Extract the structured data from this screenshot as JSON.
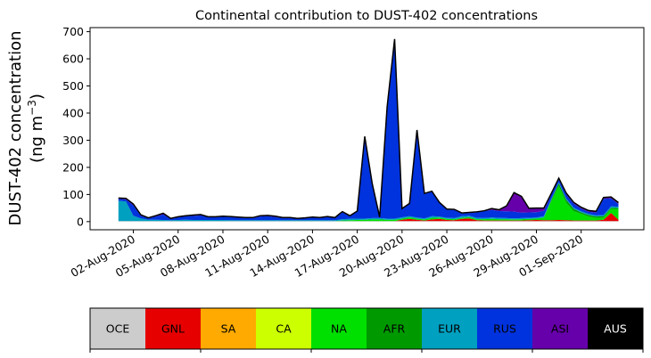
{
  "chart_data": {
    "type": "area",
    "stacked": true,
    "title": "Continental contribution to DUST-402 concentrations",
    "ylabel_line1": "DUST-402 concentration",
    "ylabel_line2": "(ng m",
    "ylabel_sup": "−3",
    "ylabel_close": ")",
    "xlabel": "",
    "ylim": [
      -30,
      715
    ],
    "yticks": [
      0,
      100,
      200,
      300,
      400,
      500,
      600,
      700
    ],
    "xlim": [
      -2.9,
      34.2
    ],
    "x_ticks": [
      {
        "pos": 0,
        "label": "02-Aug-2020"
      },
      {
        "pos": 3,
        "label": "05-Aug-2020"
      },
      {
        "pos": 6,
        "label": "08-Aug-2020"
      },
      {
        "pos": 9,
        "label": "11-Aug-2020"
      },
      {
        "pos": 12,
        "label": "14-Aug-2020"
      },
      {
        "pos": 15,
        "label": "17-Aug-2020"
      },
      {
        "pos": 18,
        "label": "20-Aug-2020"
      },
      {
        "pos": 21,
        "label": "23-Aug-2020"
      },
      {
        "pos": 24,
        "label": "26-Aug-2020"
      },
      {
        "pos": 27,
        "label": "29-Aug-2020"
      },
      {
        "pos": 30,
        "label": "01-Sep-2020"
      }
    ],
    "x": [
      -1,
      -0.5,
      0,
      0.5,
      1,
      1.5,
      2,
      2.5,
      3,
      3.5,
      4,
      4.5,
      5,
      5.5,
      6,
      6.5,
      7,
      7.5,
      8,
      8.5,
      9,
      9.5,
      10,
      10.5,
      11,
      11.5,
      12,
      12.5,
      13,
      13.5,
      14,
      14.5,
      15,
      15.5,
      16,
      16.5,
      17,
      17.5,
      18,
      18.5,
      19,
      19.5,
      20,
      20.5,
      21,
      21.5,
      22,
      22.5,
      23,
      23.5,
      24,
      24.5,
      25,
      25.5,
      26,
      26.5,
      27,
      27.5,
      28,
      28.5,
      29,
      29.5,
      30,
      30.5,
      31,
      31.5,
      32,
      32.5
    ],
    "series": [
      {
        "name": "OCE",
        "color": "#cccccc",
        "values": [
          2,
          2,
          2,
          2,
          2,
          2,
          2,
          2,
          2,
          2,
          2,
          2,
          2,
          2,
          2,
          2,
          2,
          2,
          2,
          2,
          2,
          2,
          2,
          2,
          2,
          2,
          2,
          2,
          2,
          2,
          2,
          2,
          2,
          2,
          2,
          2,
          2,
          2,
          2,
          2,
          2,
          2,
          2,
          2,
          2,
          2,
          2,
          2,
          2,
          2,
          2,
          2,
          2,
          2,
          2,
          2,
          2,
          2,
          2,
          2,
          2,
          2,
          2,
          2,
          2,
          2,
          2,
          2
        ]
      },
      {
        "name": "GNL",
        "color": "#e60000",
        "values": [
          0,
          0,
          0,
          0,
          0,
          0,
          0,
          0,
          0,
          0,
          0,
          0,
          0,
          0,
          0,
          0,
          0,
          0,
          0,
          0,
          0,
          0,
          0,
          0,
          0,
          0,
          0,
          0,
          0,
          0,
          0,
          0,
          0,
          0,
          0,
          0,
          0,
          0,
          5,
          8,
          5,
          2,
          6,
          8,
          4,
          3,
          8,
          10,
          3,
          2,
          2,
          2,
          2,
          2,
          2,
          3,
          4,
          3,
          3,
          4,
          3,
          2,
          2,
          2,
          2,
          5,
          30,
          5
        ]
      },
      {
        "name": "SA",
        "color": "#ffaa00",
        "values": [
          0,
          0,
          0,
          0,
          0,
          0,
          0,
          0,
          0,
          0,
          0,
          0,
          0,
          0,
          0,
          0,
          0,
          0,
          0,
          0,
          0,
          0,
          0,
          0,
          0,
          0,
          0,
          0,
          0,
          0,
          0,
          0,
          0,
          0,
          0,
          0,
          0,
          0,
          0,
          0,
          0,
          0,
          0,
          0,
          0,
          0,
          0,
          0,
          0,
          0,
          0,
          0,
          0,
          0,
          0,
          0,
          0,
          0,
          0,
          0,
          0,
          0,
          0,
          0,
          0,
          0,
          0,
          0
        ]
      },
      {
        "name": "CA",
        "color": "#ccff00",
        "values": [
          0,
          0,
          0,
          0,
          0,
          0,
          0,
          0,
          0,
          0,
          0,
          0,
          0,
          0,
          0,
          0,
          0,
          0,
          0,
          0,
          0,
          0,
          0,
          0,
          0,
          0,
          0,
          0,
          0,
          0,
          0,
          0,
          0,
          0,
          0,
          0,
          0,
          0,
          0,
          0,
          0,
          0,
          0,
          0,
          0,
          0,
          0,
          0,
          0,
          0,
          0,
          0,
          0,
          0,
          0,
          0,
          0,
          0,
          0,
          0,
          0,
          0,
          0,
          0,
          0,
          0,
          0,
          0
        ]
      },
      {
        "name": "NA",
        "color": "#00e000",
        "values": [
          0,
          0,
          0,
          0,
          0,
          0,
          0,
          0,
          0,
          0,
          0,
          0,
          0,
          0,
          0,
          0,
          0,
          0,
          0,
          0,
          0,
          0,
          0,
          0,
          0,
          0,
          0,
          0,
          0,
          0,
          2,
          3,
          4,
          5,
          6,
          6,
          5,
          5,
          4,
          6,
          4,
          4,
          6,
          5,
          4,
          4,
          4,
          5,
          4,
          5,
          6,
          5,
          5,
          4,
          5,
          5,
          5,
          10,
          70,
          125,
          65,
          35,
          25,
          15,
          10,
          8,
          15,
          40
        ]
      },
      {
        "name": "AFR",
        "color": "#009900",
        "values": [
          0,
          0,
          0,
          0,
          0,
          0,
          0,
          0,
          0,
          0,
          0,
          0,
          0,
          0,
          0,
          0,
          0,
          0,
          0,
          0,
          0,
          0,
          0,
          0,
          0,
          0,
          0,
          0,
          0,
          0,
          0,
          0,
          0,
          0,
          0,
          0,
          0,
          0,
          0,
          0,
          0,
          0,
          0,
          0,
          0,
          0,
          0,
          0,
          0,
          0,
          0,
          0,
          0,
          0,
          0,
          0,
          0,
          0,
          5,
          10,
          10,
          8,
          5,
          5,
          5,
          5,
          4,
          3
        ]
      },
      {
        "name": "EUR",
        "color": "#00a0c0",
        "values": [
          75,
          72,
          20,
          10,
          5,
          5,
          4,
          3,
          4,
          5,
          4,
          4,
          4,
          4,
          4,
          3,
          3,
          3,
          3,
          3,
          3,
          3,
          3,
          3,
          3,
          3,
          3,
          3,
          3,
          3,
          5,
          5,
          5,
          4,
          5,
          5,
          4,
          4,
          5,
          4,
          4,
          4,
          6,
          4,
          4,
          4,
          6,
          5,
          5,
          4,
          5,
          5,
          4,
          4,
          4,
          4,
          4,
          5,
          4,
          4,
          5,
          4,
          4,
          4,
          4,
          4,
          5,
          5
        ]
      },
      {
        "name": "RUS",
        "color": "#0033dd",
        "values": [
          7,
          8,
          38,
          10,
          5,
          12,
          20,
          5,
          10,
          13,
          15,
          17,
          10,
          10,
          12,
          12,
          10,
          8,
          8,
          14,
          15,
          12,
          8,
          8,
          5,
          7,
          10,
          8,
          12,
          8,
          25,
          10,
          25,
          300,
          125,
          2,
          410,
          660,
          30,
          45,
          320,
          90,
          90,
          50,
          30,
          30,
          10,
          10,
          20,
          25,
          28,
          25,
          25,
          25,
          20,
          20,
          20,
          20,
          15,
          10,
          15,
          15,
          10,
          8,
          10,
          60,
          30,
          10
        ]
      },
      {
        "name": "ASI",
        "color": "#6600aa",
        "values": [
          3,
          4,
          5,
          3,
          2,
          3,
          5,
          2,
          2,
          2,
          3,
          3,
          2,
          2,
          2,
          2,
          2,
          2,
          2,
          3,
          3,
          3,
          2,
          2,
          2,
          2,
          2,
          2,
          2,
          2,
          3,
          2,
          3,
          3,
          2,
          2,
          2,
          2,
          2,
          2,
          3,
          2,
          2,
          2,
          2,
          2,
          2,
          2,
          2,
          2,
          5,
          5,
          20,
          70,
          60,
          15,
          15,
          10,
          5,
          5,
          5,
          5,
          5,
          5,
          5,
          5,
          5,
          5
        ]
      },
      {
        "name": "AUS",
        "color": "#000000",
        "values": [
          0,
          0,
          0,
          0,
          0,
          0,
          0,
          0,
          0,
          0,
          0,
          0,
          0,
          0,
          0,
          0,
          0,
          0,
          0,
          0,
          0,
          0,
          0,
          0,
          0,
          0,
          0,
          0,
          0,
          0,
          0,
          0,
          0,
          0,
          0,
          0,
          0,
          0,
          0,
          0,
          0,
          0,
          0,
          0,
          0,
          0,
          0,
          0,
          0,
          0,
          0,
          0,
          0,
          0,
          0,
          0,
          0,
          0,
          0,
          0,
          0,
          0,
          0,
          0,
          0,
          0,
          0,
          0
        ]
      }
    ],
    "legend": [
      {
        "label": "OCE",
        "color": "#cccccc",
        "text_color": "#000000"
      },
      {
        "label": "GNL",
        "color": "#e60000",
        "text_color": "#000000"
      },
      {
        "label": "SA",
        "color": "#ffaa00",
        "text_color": "#000000"
      },
      {
        "label": "CA",
        "color": "#ccff00",
        "text_color": "#000000"
      },
      {
        "label": "NA",
        "color": "#00e000",
        "text_color": "#000000"
      },
      {
        "label": "AFR",
        "color": "#009900",
        "text_color": "#000000"
      },
      {
        "label": "EUR",
        "color": "#00a0c0",
        "text_color": "#000000"
      },
      {
        "label": "RUS",
        "color": "#0033dd",
        "text_color": "#000000"
      },
      {
        "label": "ASI",
        "color": "#6600aa",
        "text_color": "#000000"
      },
      {
        "label": "AUS",
        "color": "#000000",
        "text_color": "#ffffff"
      }
    ],
    "legend_placement": "bottom",
    "grid": false
  }
}
